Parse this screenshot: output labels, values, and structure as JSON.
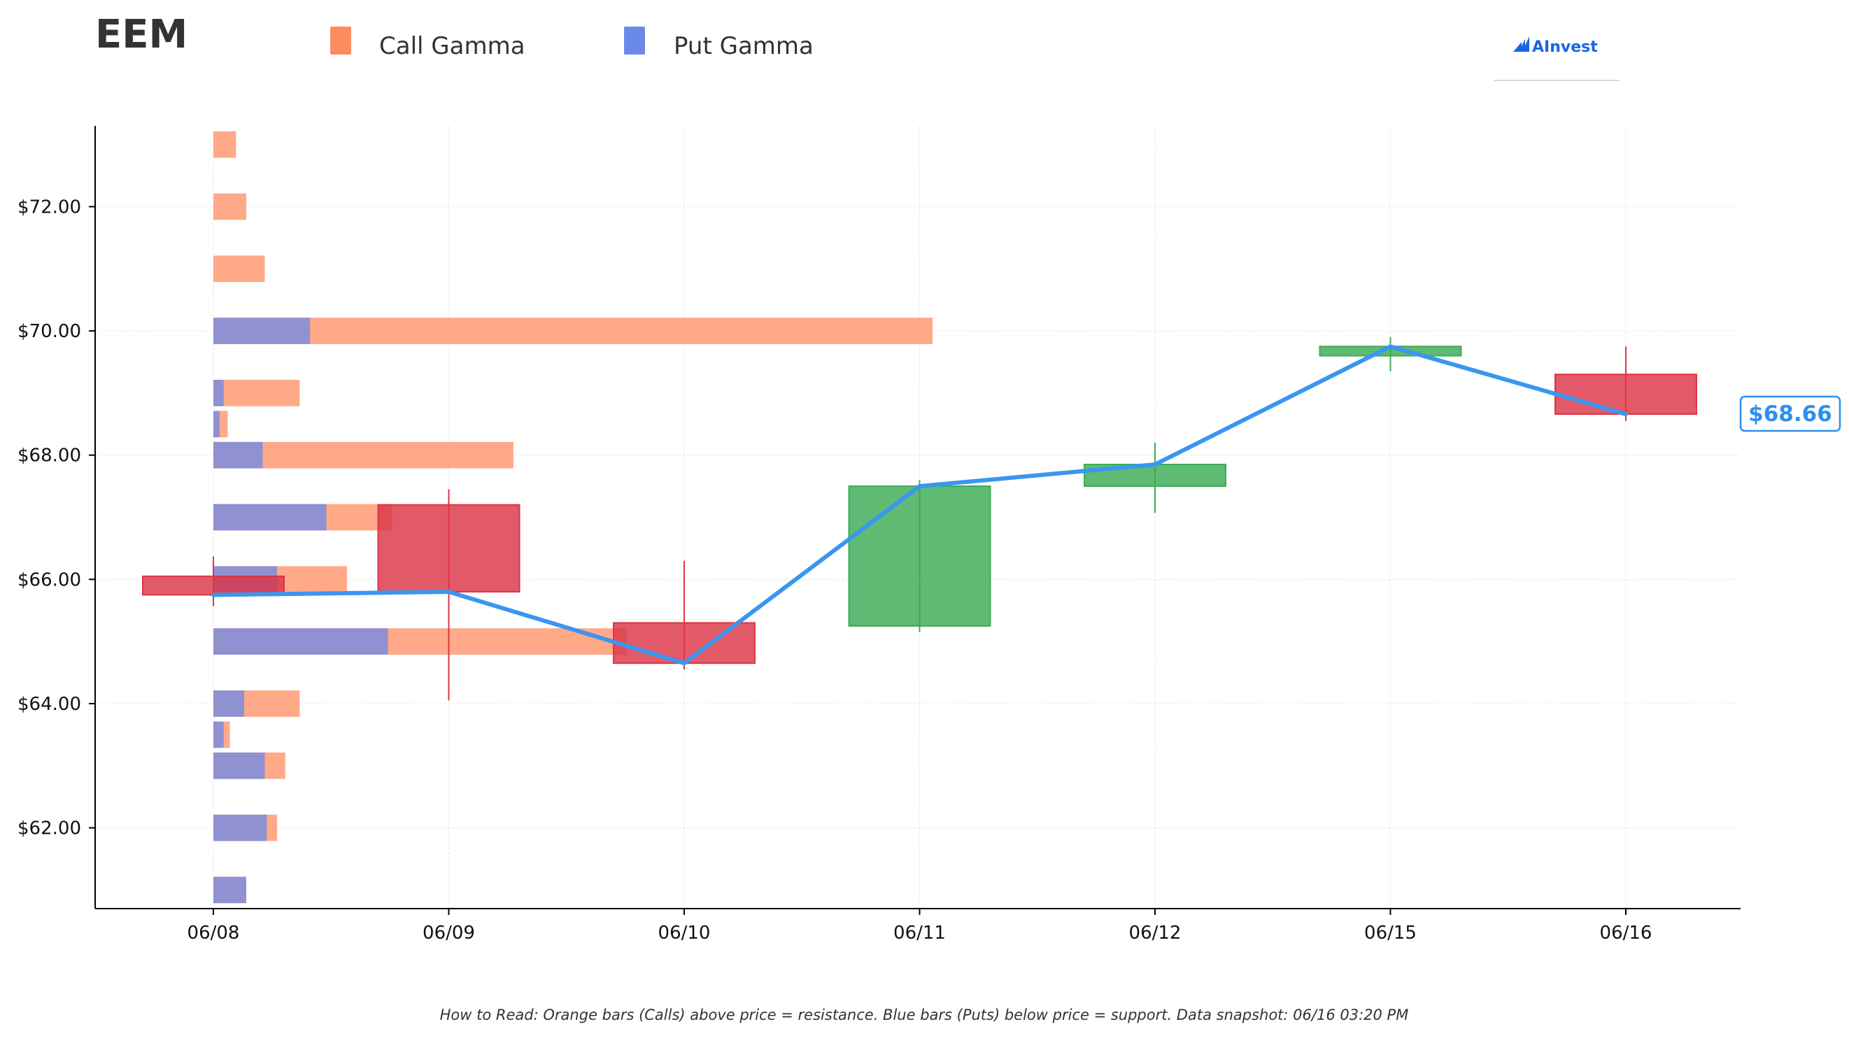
{
  "header": {
    "title": "EEM",
    "logo": "AInvest"
  },
  "legend": [
    {
      "label": "Call Gamma",
      "color": "#ff8c61"
    },
    {
      "label": "Put Gamma",
      "color": "#6b8ae8"
    }
  ],
  "footer": "How to Read: Orange bars (Calls) above price = resistance. Blue bars (Puts) below price = support. Data snapshot: 06/16 03:20 PM",
  "colors": {
    "call": "#ff8c61",
    "put": "#6b8ae8",
    "up": "#3cab55",
    "down": "#dc3545",
    "line": "#3a96ef",
    "price_label": "#2b8fef"
  },
  "chart_data": {
    "type": "candlestick",
    "title": "EEM",
    "categories": [
      "06/08",
      "06/09",
      "06/10",
      "06/11",
      "06/12",
      "06/15",
      "06/16"
    ],
    "ylim": [
      60.7,
      73.3
    ],
    "yticks": [
      62,
      64,
      66,
      68,
      70,
      72
    ],
    "ytick_labels": [
      "$62.00",
      "$64.00",
      "$66.00",
      "$68.00",
      "$70.00",
      "$72.00"
    ],
    "grid": true,
    "legend_position": "top",
    "candles": [
      {
        "date": "06/08",
        "open": 66.05,
        "high": 66.37,
        "low": 65.57,
        "close": 65.75
      },
      {
        "date": "06/09",
        "open": 67.2,
        "high": 67.45,
        "low": 64.05,
        "close": 65.8
      },
      {
        "date": "06/10",
        "open": 65.3,
        "high": 66.3,
        "low": 64.55,
        "close": 64.65
      },
      {
        "date": "06/11",
        "open": 65.25,
        "high": 67.6,
        "low": 65.15,
        "close": 67.5
      },
      {
        "date": "06/12",
        "open": 67.5,
        "high": 68.2,
        "low": 67.07,
        "close": 67.85
      },
      {
        "date": "06/15",
        "open": 69.6,
        "high": 69.9,
        "low": 69.35,
        "close": 69.75
      },
      {
        "date": "06/16",
        "open": 69.3,
        "high": 69.75,
        "low": 68.55,
        "close": 68.66
      }
    ],
    "close_line": [
      65.75,
      65.8,
      64.65,
      67.5,
      67.85,
      69.75,
      68.66
    ],
    "last_price": 68.66,
    "last_price_label": "$68.66",
    "gamma_strikes": [
      61,
      62,
      63,
      63.5,
      64,
      65,
      66,
      67,
      68,
      68.5,
      69,
      70,
      71,
      72,
      73
    ],
    "call_gamma": [
      0.16,
      0.31,
      0.35,
      0.08,
      0.42,
      2.01,
      0.65,
      0.87,
      1.46,
      0.07,
      0.42,
      3.5,
      0.25,
      0.16,
      0.11
    ],
    "put_gamma": [
      0.16,
      0.26,
      0.25,
      0.05,
      0.15,
      0.85,
      0.31,
      0.55,
      0.24,
      0.03,
      0.05,
      0.47,
      0.0,
      0.0,
      0.0
    ],
    "gamma_scale_max": 4.0
  }
}
